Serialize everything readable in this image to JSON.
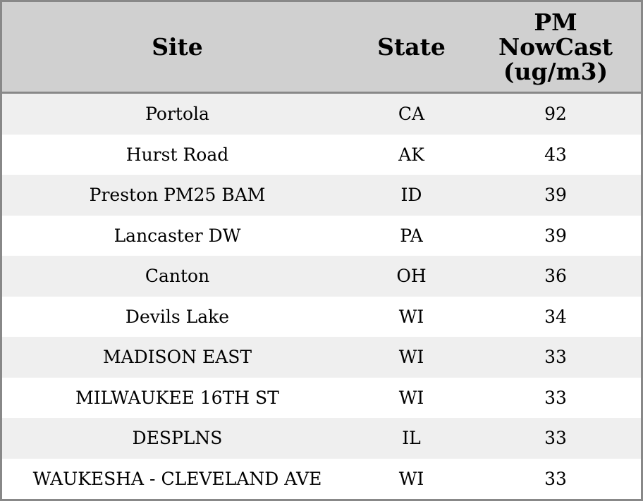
{
  "table": {
    "columns": [
      "Site",
      "State",
      "PM NowCast (ug/m3)"
    ],
    "rows": [
      [
        "Portola",
        "CA",
        92
      ],
      [
        "Hurst Road",
        "AK",
        43
      ],
      [
        "Preston PM25 BAM",
        "ID",
        39
      ],
      [
        "Lancaster DW",
        "PA",
        39
      ],
      [
        "Canton",
        "OH",
        36
      ],
      [
        "Devils Lake",
        "WI",
        34
      ],
      [
        "MADISON EAST",
        "WI",
        33
      ],
      [
        "MILWAUKEE 16TH ST",
        "WI",
        33
      ],
      [
        "DESPLNS",
        "IL",
        33
      ],
      [
        "WAUKESHA - CLEVELAND AVE",
        "WI",
        33
      ]
    ]
  }
}
